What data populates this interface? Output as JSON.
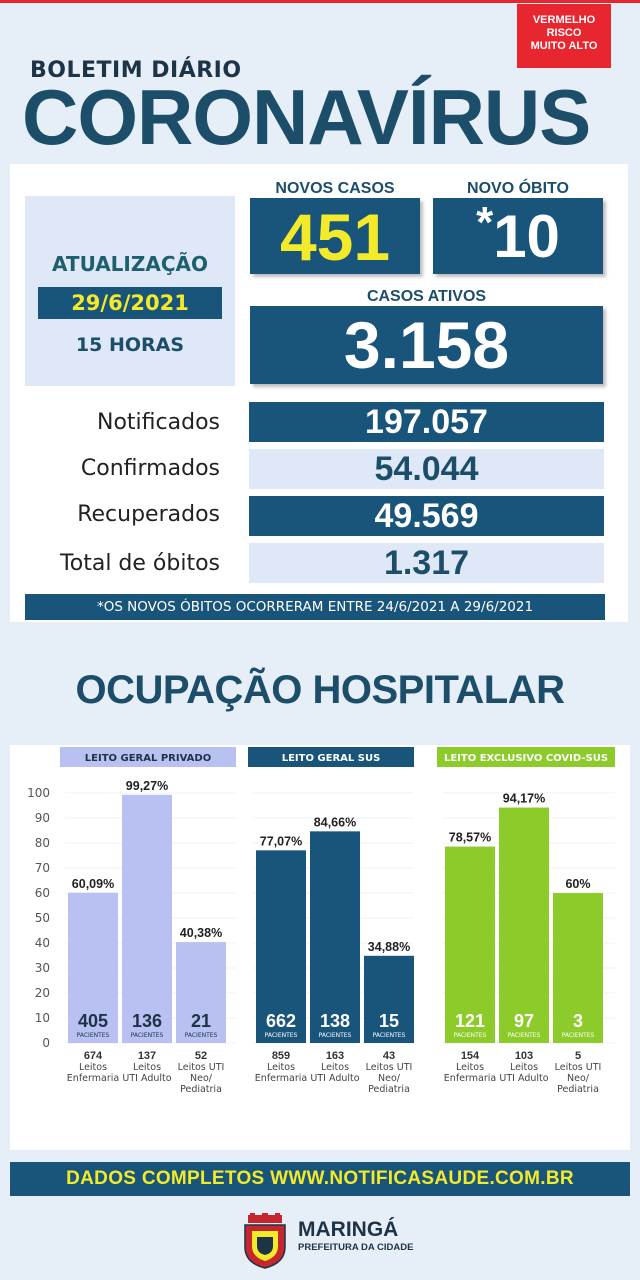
{
  "risk": {
    "line1": "VERMELHO",
    "line2": "RISCO",
    "line3": "MUITO ALTO",
    "color": "#e8262f"
  },
  "header": {
    "subtitle": "BOLETIM DIÁRIO",
    "title": "CORONAVÍRUS"
  },
  "update": {
    "label": "ATUALIZAÇÃO",
    "date": "29/6/2021",
    "hour": "15 HORAS"
  },
  "new_cases": {
    "label": "NOVOS CASOS",
    "value": "451"
  },
  "new_death": {
    "label": "NOVO ÓBITO",
    "star": "*",
    "value": "10"
  },
  "active_cases": {
    "label": "CASOS ATIVOS",
    "value": "3.158"
  },
  "stats": [
    {
      "label": "Notificados",
      "value": "197.057"
    },
    {
      "label": "Confirmados",
      "value": "54.044"
    },
    {
      "label": "Recuperados",
      "value": "49.569"
    },
    {
      "label": "Total de óbitos",
      "value": "1.317"
    }
  ],
  "note": "*OS NOVOS ÓBITOS OCORRERAM ENTRE 24/6/2021 A 29/6/2021",
  "occupancy_title": "OCUPAÇÃO HOSPITALAR",
  "chart_data": {
    "type": "bar",
    "ylim": [
      0,
      100
    ],
    "yticks": [
      "0",
      "10",
      "20",
      "30",
      "40",
      "50",
      "60",
      "70",
      "80",
      "90",
      "100"
    ],
    "patients_label": "PACIENTES",
    "groups": [
      {
        "name": "LEITO GERAL PRIVADO",
        "bar_color": "#b8c1f2",
        "label_color": "#b8c1f2",
        "label_text_color": "#1d3346",
        "bars": [
          {
            "value": 60.09,
            "pct_label": "60,09%",
            "patients": "405",
            "beds": "674",
            "cat1": "Leitos",
            "cat2": "Enfermaria",
            "cat3": ""
          },
          {
            "value": 99.27,
            "pct_label": "99,27%",
            "patients": "136",
            "beds": "137",
            "cat1": "Leitos",
            "cat2": "UTI Adulto",
            "cat3": ""
          },
          {
            "value": 40.38,
            "pct_label": "40,38%",
            "patients": "21",
            "beds": "52",
            "cat1": "Leitos UTI",
            "cat2": "Neo/",
            "cat3": "Pediatria"
          }
        ]
      },
      {
        "name": "LEITO GERAL SUS",
        "bar_color": "#19557a",
        "label_color": "#19557a",
        "label_text_color": "#ffffff",
        "bars": [
          {
            "value": 77.07,
            "pct_label": "77,07%",
            "patients": "662",
            "beds": "859",
            "cat1": "Leitos",
            "cat2": "Enfermaria",
            "cat3": ""
          },
          {
            "value": 84.66,
            "pct_label": "84,66%",
            "patients": "138",
            "beds": "163",
            "cat1": "Leitos",
            "cat2": "UTI Adulto",
            "cat3": ""
          },
          {
            "value": 34.88,
            "pct_label": "34,88%",
            "patients": "15",
            "beds": "43",
            "cat1": "Leitos UTI",
            "cat2": "Neo/",
            "cat3": "Pediatria"
          }
        ]
      },
      {
        "name": "LEITO EXCLUSIVO COVID-SUS",
        "bar_color": "#8ccb2a",
        "label_color": "#8ccb2a",
        "label_text_color": "#ffffff",
        "bars": [
          {
            "value": 78.57,
            "pct_label": "78,57%",
            "patients": "121",
            "beds": "154",
            "cat1": "Leitos",
            "cat2": "Enfermaria",
            "cat3": ""
          },
          {
            "value": 94.17,
            "pct_label": "94,17%",
            "patients": "97",
            "beds": "103",
            "cat1": "Leitos",
            "cat2": "UTI Adulto",
            "cat3": ""
          },
          {
            "value": 60,
            "pct_label": "60%",
            "patients": "3",
            "beds": "5",
            "cat1": "Leitos UTI",
            "cat2": "Neo/",
            "cat3": "Pediatria"
          }
        ]
      }
    ]
  },
  "footer": {
    "text": "DADOS COMPLETOS  WWW.NOTIFICASAUDE.COM.BR",
    "city": "MARINGÁ",
    "city_sub": "PREFEITURA DA CIDADE"
  }
}
